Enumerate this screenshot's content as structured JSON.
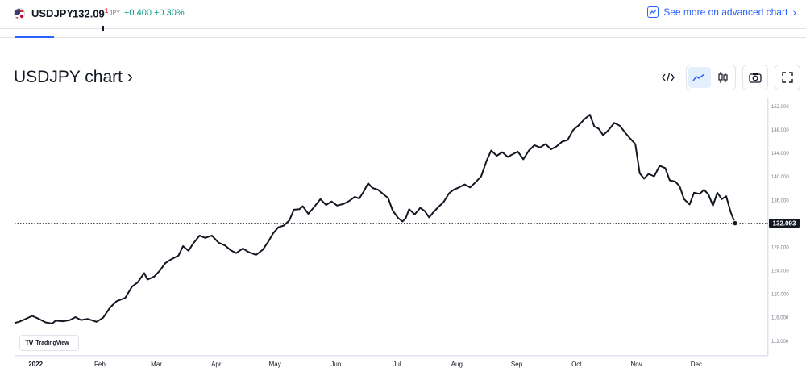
{
  "header": {
    "symbol": "USDJPY",
    "price_main": "132.09",
    "price_sup": "1",
    "currency": "JPY",
    "change": "+0.400",
    "change_percent": "+0.30%",
    "advanced_link": "See more on advanced chart",
    "accent_color": "#2962ff",
    "positive_color": "#089981"
  },
  "chart_title": "USDJPY chart ›",
  "toolbar": {
    "embed_icon": "code-icon",
    "line_icon": "line-chart-icon",
    "candle_icon": "candlestick-icon",
    "snapshot_icon": "camera-icon",
    "fullscreen_icon": "fullscreen-icon"
  },
  "branding": {
    "logo_text": "TradingView"
  },
  "chart_data": {
    "type": "line",
    "title": "",
    "xlabel": "",
    "ylabel": "",
    "ylim": [
      109.5,
      153.5
    ],
    "x_ticks": [
      "2022",
      "Feb",
      "Mar",
      "Apr",
      "May",
      "Jun",
      "Jul",
      "Aug",
      "Sep",
      "Oct",
      "Nov",
      "Dec"
    ],
    "y_ticks": [
      "152.000",
      "148.000",
      "144.000",
      "140.000",
      "136.000",
      "132.000",
      "128.000",
      "124.000",
      "120.000",
      "116.000",
      "112.000"
    ],
    "y_tick_values": [
      152,
      148,
      144,
      140,
      136,
      132,
      128,
      124,
      120,
      116,
      112
    ],
    "last_value": 132.093,
    "last_value_label": "132.093",
    "grid": false,
    "line_color": "#131722",
    "series": [
      {
        "values": [
          [
            0.0,
            115.1
          ],
          [
            0.2,
            115.3
          ],
          [
            0.45,
            115.7
          ],
          [
            0.8,
            116.3
          ],
          [
            1.1,
            115.8
          ],
          [
            1.4,
            115.2
          ],
          [
            1.7,
            115.0
          ],
          [
            1.85,
            115.5
          ],
          [
            2.2,
            115.4
          ],
          [
            2.5,
            115.6
          ],
          [
            2.75,
            116.1
          ],
          [
            3.0,
            115.6
          ],
          [
            3.3,
            115.8
          ],
          [
            3.7,
            115.3
          ],
          [
            4.0,
            116.0
          ],
          [
            4.3,
            117.7
          ],
          [
            4.6,
            118.8
          ],
          [
            5.0,
            119.4
          ],
          [
            5.3,
            121.3
          ],
          [
            5.55,
            122.0
          ],
          [
            5.85,
            123.6
          ],
          [
            6.0,
            122.5
          ],
          [
            6.3,
            123.0
          ],
          [
            6.55,
            124.0
          ],
          [
            6.8,
            125.3
          ],
          [
            7.05,
            125.9
          ],
          [
            7.4,
            126.6
          ],
          [
            7.6,
            128.2
          ],
          [
            7.85,
            127.4
          ],
          [
            8.05,
            128.6
          ],
          [
            8.35,
            130.0
          ],
          [
            8.6,
            129.6
          ],
          [
            8.9,
            130.0
          ],
          [
            9.2,
            128.8
          ],
          [
            9.5,
            128.3
          ],
          [
            9.75,
            127.5
          ],
          [
            10.0,
            127.0
          ],
          [
            10.3,
            127.8
          ],
          [
            10.55,
            127.2
          ],
          [
            10.9,
            126.7
          ],
          [
            11.2,
            127.6
          ],
          [
            11.45,
            129.0
          ],
          [
            11.65,
            130.3
          ],
          [
            11.9,
            131.4
          ],
          [
            12.15,
            131.7
          ],
          [
            12.4,
            132.6
          ],
          [
            12.6,
            134.4
          ],
          [
            12.85,
            134.5
          ],
          [
            13.0,
            135.0
          ],
          [
            13.25,
            133.7
          ],
          [
            13.5,
            134.8
          ],
          [
            13.8,
            136.2
          ],
          [
            14.05,
            135.2
          ],
          [
            14.3,
            135.8
          ],
          [
            14.55,
            135.1
          ],
          [
            14.85,
            135.4
          ],
          [
            15.1,
            135.9
          ],
          [
            15.35,
            136.6
          ],
          [
            15.55,
            136.3
          ],
          [
            15.75,
            137.5
          ],
          [
            15.95,
            138.9
          ],
          [
            16.15,
            138.1
          ],
          [
            16.4,
            137.8
          ],
          [
            16.65,
            137.0
          ],
          [
            16.85,
            136.4
          ],
          [
            17.05,
            134.3
          ],
          [
            17.3,
            133.0
          ],
          [
            17.5,
            132.4
          ],
          [
            17.65,
            133.0
          ],
          [
            17.8,
            134.5
          ],
          [
            18.05,
            133.6
          ],
          [
            18.3,
            134.7
          ],
          [
            18.5,
            134.2
          ],
          [
            18.7,
            133.1
          ],
          [
            18.9,
            134.0
          ],
          [
            19.1,
            134.8
          ],
          [
            19.35,
            135.7
          ],
          [
            19.6,
            137.2
          ],
          [
            19.8,
            137.8
          ],
          [
            20.05,
            138.2
          ],
          [
            20.3,
            138.7
          ],
          [
            20.55,
            138.2
          ],
          [
            20.8,
            139.1
          ],
          [
            21.05,
            140.1
          ],
          [
            21.3,
            142.8
          ],
          [
            21.5,
            144.5
          ],
          [
            21.75,
            143.6
          ],
          [
            22.0,
            144.2
          ],
          [
            22.25,
            143.4
          ],
          [
            22.45,
            143.8
          ],
          [
            22.7,
            144.3
          ],
          [
            22.95,
            143.0
          ],
          [
            23.2,
            144.5
          ],
          [
            23.45,
            145.4
          ],
          [
            23.7,
            145.0
          ],
          [
            23.95,
            145.6
          ],
          [
            24.2,
            144.7
          ],
          [
            24.45,
            145.2
          ],
          [
            24.7,
            146.0
          ],
          [
            24.95,
            146.3
          ],
          [
            25.2,
            148.0
          ],
          [
            25.45,
            148.8
          ],
          [
            25.7,
            149.8
          ],
          [
            25.95,
            150.6
          ],
          [
            26.15,
            148.6
          ],
          [
            26.35,
            148.2
          ],
          [
            26.55,
            147.1
          ],
          [
            26.8,
            148.0
          ],
          [
            27.05,
            149.2
          ],
          [
            27.3,
            148.7
          ],
          [
            27.55,
            147.5
          ],
          [
            27.8,
            146.4
          ],
          [
            28.0,
            145.6
          ],
          [
            28.2,
            140.6
          ],
          [
            28.4,
            139.7
          ],
          [
            28.6,
            140.5
          ],
          [
            28.85,
            140.1
          ],
          [
            29.1,
            141.9
          ],
          [
            29.35,
            141.5
          ],
          [
            29.55,
            139.4
          ],
          [
            29.8,
            139.2
          ],
          [
            30.0,
            138.4
          ],
          [
            30.2,
            136.2
          ],
          [
            30.45,
            135.3
          ],
          [
            30.65,
            137.3
          ],
          [
            30.9,
            137.1
          ],
          [
            31.1,
            137.8
          ],
          [
            31.3,
            137.0
          ],
          [
            31.5,
            135.1
          ],
          [
            31.7,
            137.3
          ],
          [
            31.9,
            136.2
          ],
          [
            32.1,
            136.7
          ],
          [
            32.3,
            134.0
          ],
          [
            32.5,
            132.1
          ]
        ]
      }
    ]
  }
}
